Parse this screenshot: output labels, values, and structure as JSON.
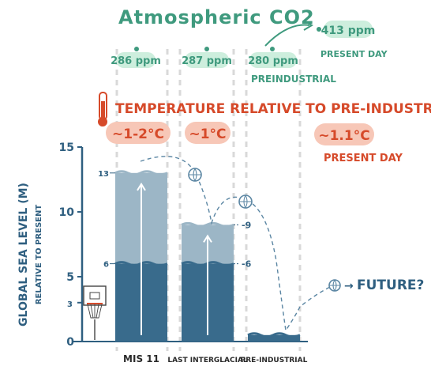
{
  "co2": {
    "title": "Atmospheric CO2",
    "mis11": "286 ppm",
    "last_interglacial": "287 ppm",
    "preindustrial": "280 ppm",
    "preindustrial_label": "Preindustrial",
    "present": "413 ppm",
    "present_label": "Present day"
  },
  "temperature": {
    "title": "Temperature relative to pre-industrial",
    "mis11": "~1-2°C",
    "last_interglacial": "~1°C",
    "present": "~1.1°C",
    "present_label": "Present day"
  },
  "future_label": "Future?",
  "colors": {
    "green": "#3f9a7e",
    "green_bubble": "#cdeedd",
    "red": "#d64a2a",
    "red_bubble": "#f7c7b7",
    "dark_blue": "#396b8c",
    "light_blue": "#9cb6c6",
    "axis": "#2f5f80"
  },
  "chart_data": {
    "type": "bar",
    "title": "",
    "ylabel": "Global sea level (m)",
    "ylabel_sub": "relative to present",
    "ylim": [
      0,
      15
    ],
    "yticks": [
      0,
      5,
      10,
      15
    ],
    "extra_ticks": [
      3
    ],
    "categories": [
      "MIS 11",
      "Last Interglacial",
      "Pre-industrial"
    ],
    "series": [
      {
        "values": [
          6,
          6,
          0.5
        ]
      },
      {
        "values": [
          13,
          9,
          0.5
        ]
      }
    ],
    "bar_labels": [
      {
        "category": 0,
        "value": 13,
        "text": "13"
      },
      {
        "category": 0,
        "value": 6,
        "text": "6"
      },
      {
        "category": 1,
        "value": 9,
        "text": "9"
      },
      {
        "category": 1,
        "value": 6,
        "text": "6"
      }
    ]
  }
}
